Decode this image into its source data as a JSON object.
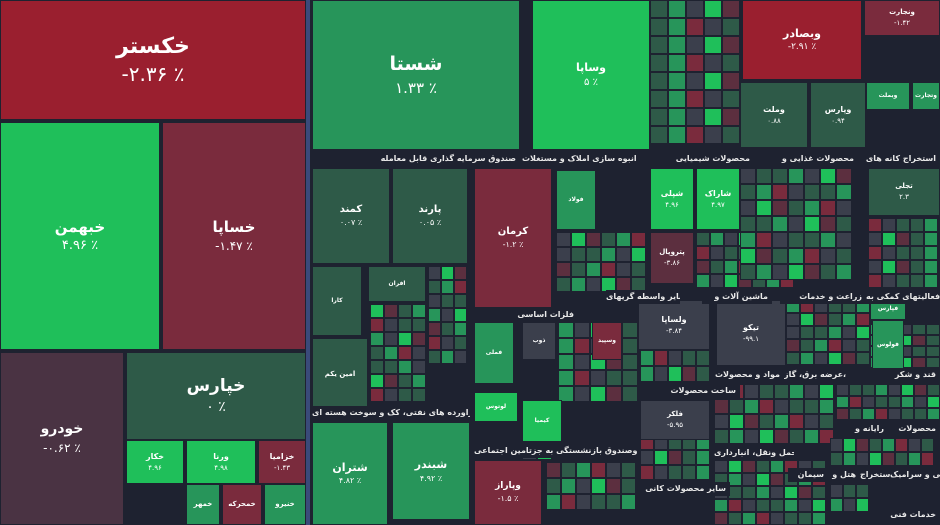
{
  "palette": {
    "strong_red": "#9a1f2f",
    "red": "#7a2b3d",
    "dark_red": "#5c2f3f",
    "neutral": "#3b3f4c",
    "dark_green": "#2e5a48",
    "green": "#27955a",
    "bright_green": "#1fbf5a"
  },
  "left_tiles": [
    {
      "symbol": "خکستر",
      "change": "-۲.۳۶ ٪",
      "color": "#9a1f2f"
    },
    {
      "symbol": "خبهمن",
      "change": "۴.۹۶ ٪",
      "color": "#1fbf5a"
    },
    {
      "symbol": "خساپا",
      "change": "-۱.۴۷ ٪",
      "color": "#7a2b3d"
    },
    {
      "symbol": "خپارس",
      "change": "۰ ٪",
      "color": "#2e5a48"
    },
    {
      "symbol": "خودرو",
      "change": "-۰.۶۲ ٪",
      "color": "#4a3343"
    },
    {
      "symbol": "خکار",
      "change": "۴.۹۶",
      "color": "#1fbf5a"
    },
    {
      "symbol": "ورنا",
      "change": "۴.۹۸",
      "color": "#1fbf5a"
    },
    {
      "symbol": "خزامیا",
      "change": "-۱.۴۳",
      "color": "#7a2b3d"
    },
    {
      "symbol": "خمحرکه",
      "change": "",
      "color": "#7a2b3d"
    },
    {
      "symbol": "خمهر",
      "change": "",
      "color": "#27955a"
    },
    {
      "symbol": "خنیرو",
      "change": "",
      "color": "#27955a"
    }
  ],
  "right_tiles": [
    {
      "symbol": "شستا",
      "change": "۱.۳۳ ٪",
      "color": "#27955a"
    },
    {
      "symbol": "وساپا",
      "change": "۵ ٪",
      "color": "#1fbf5a"
    },
    {
      "symbol": "وبصادر",
      "change": "-۲.۹۱ ٪",
      "color": "#9a1f2f"
    },
    {
      "symbol": "ونجارت",
      "change": "-۱.۴۲",
      "color": "#7a2b3d"
    },
    {
      "symbol": "وپارس",
      "change": "۰.۹۴",
      "color": "#2e5a48"
    },
    {
      "symbol": "وملت",
      "change": "۰.۸۸",
      "color": "#2e5a48"
    },
    {
      "symbol": "وبملت",
      "change": "",
      "color": "#27955a"
    },
    {
      "symbol": "وتجارت",
      "change": "",
      "color": "#27955a"
    },
    {
      "symbol": "کمند",
      "change": "۰.۰۷ ٪",
      "color": "#2e5a48"
    },
    {
      "symbol": "پارند",
      "change": "۰.۰۵ ٪",
      "color": "#2e5a48"
    },
    {
      "symbol": "کرمان",
      "change": "-۱.۲ ٪",
      "color": "#7a2b3d"
    },
    {
      "symbol": "شپلی",
      "change": "۴.۹۶",
      "color": "#1fbf5a"
    },
    {
      "symbol": "شاراک",
      "change": "۴.۹۷",
      "color": "#1fbf5a"
    },
    {
      "symbol": "پتروپال",
      "change": "-۳.۸۶",
      "color": "#5c2f3f"
    },
    {
      "symbol": "افران",
      "change": "",
      "color": "#2e5a48"
    },
    {
      "symbol": "کارا",
      "change": "",
      "color": "#2e5a48"
    },
    {
      "symbol": "امین یکم",
      "change": "",
      "color": "#2e5a48"
    },
    {
      "symbol": "فولاد",
      "change": "",
      "color": "#27955a"
    },
    {
      "symbol": "ذوب",
      "change": "",
      "color": "#3b3f4c"
    },
    {
      "symbol": "وسپید",
      "change": "",
      "color": "#7a2b3d"
    },
    {
      "symbol": "فملی",
      "change": "",
      "color": "#27955a"
    },
    {
      "symbol": "ولساپا",
      "change": "-۳.۸۴",
      "color": "#3b3f4c"
    },
    {
      "symbol": "تیکو",
      "change": "-۹۹.۱",
      "color": "#3b3f4c"
    },
    {
      "symbol": "فلکر",
      "change": "-۵.۹۵",
      "color": "#3b3f4c"
    },
    {
      "symbol": "شبندر",
      "change": "۴.۹۲ ٪",
      "color": "#27955a"
    },
    {
      "symbol": "شتران",
      "change": "۴.۸۲ ٪",
      "color": "#27955a"
    },
    {
      "symbol": "وپاراز",
      "change": "-۱.۵ ٪",
      "color": "#7a2b3d"
    },
    {
      "symbol": "تجلی",
      "change": "۲.۳",
      "color": "#2e5a48"
    },
    {
      "symbol": "فولوس",
      "change": "",
      "color": "#27955a"
    },
    {
      "symbol": "فپارس",
      "change": "",
      "color": "#27955a"
    },
    {
      "symbol": "کیمیا",
      "change": "",
      "color": "#1fbf5a"
    },
    {
      "symbol": "لوتوس",
      "change": "",
      "color": "#1fbf5a"
    }
  ],
  "sector_labels": [
    "صندوق سرمایه گذاری قابل معامله",
    "انبوه سازی املاک و مستغلات",
    "محصولات شیمیایی",
    "محصولات غذایی و",
    "استخراج کانه های",
    "ماشین آلات و",
    "سایر واسطه گریهای",
    "زراعت و خدمات",
    "فعالیتهای کمکی به",
    "فلزات اساسی",
    "فراورده های نفتی، کک و سوخت هسته ای",
    "ساخت محصولات",
    "مواد و محصولات",
    "عرضه برق، گاز،",
    "قند و شکر",
    "بیمه وصندوق بازنشستگی به جزتامین اجتماعی",
    "سایر محصولات کانی",
    "حمل ونقل، انبارداری",
    "رایانه و",
    "محصولات",
    "کاشی و سرامیک",
    "سیمان",
    "هتل و",
    "استخراج",
    "خدمات فنی"
  ]
}
